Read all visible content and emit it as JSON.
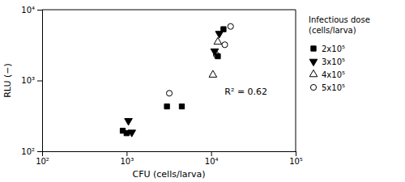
{
  "chart_data": {
    "type": "scatter",
    "log": true,
    "xlabel": "CFU (cells/larva)",
    "ylabel": "RLU (−)",
    "xlim": [
      100,
      100000
    ],
    "ylim": [
      100,
      10000
    ],
    "xticks": [
      {
        "value": 100,
        "label": "10²"
      },
      {
        "value": 1000,
        "label": "10³"
      },
      {
        "value": 10000,
        "label": "10⁴"
      },
      {
        "value": 100000,
        "label": "10⁵"
      }
    ],
    "yticks": [
      {
        "value": 100,
        "label": "10²"
      },
      {
        "value": 1000,
        "label": "10³"
      },
      {
        "value": 10000,
        "label": "10⁴"
      }
    ],
    "legend": "right",
    "annotations": [
      "Infectious dose",
      "(cells/larva)",
      "R² = 0.62"
    ],
    "series": [
      {
        "name": "2x10⁵",
        "marker": "square",
        "color": "black",
        "x": [
          900,
          1000,
          3000,
          4500,
          12000,
          14000
        ],
        "values": [
          195,
          180,
          430,
          430,
          2200,
          5300
        ]
      },
      {
        "name": "3x10⁵",
        "marker": "triangle-down",
        "color": "black",
        "x": [
          1050,
          1150,
          11000,
          12500
        ],
        "values": [
          270,
          185,
          2600,
          4600
        ]
      },
      {
        "name": "4x10⁵",
        "marker": "triangle-up-open",
        "color": "black",
        "x": [
          10500,
          12000
        ],
        "values": [
          1200,
          3500
        ]
      },
      {
        "name": "5x10⁵",
        "marker": "circle-open",
        "color": "black",
        "x": [
          3200,
          11500,
          14500,
          17000
        ],
        "values": [
          660,
          2300,
          3200,
          5800
        ]
      }
    ]
  }
}
